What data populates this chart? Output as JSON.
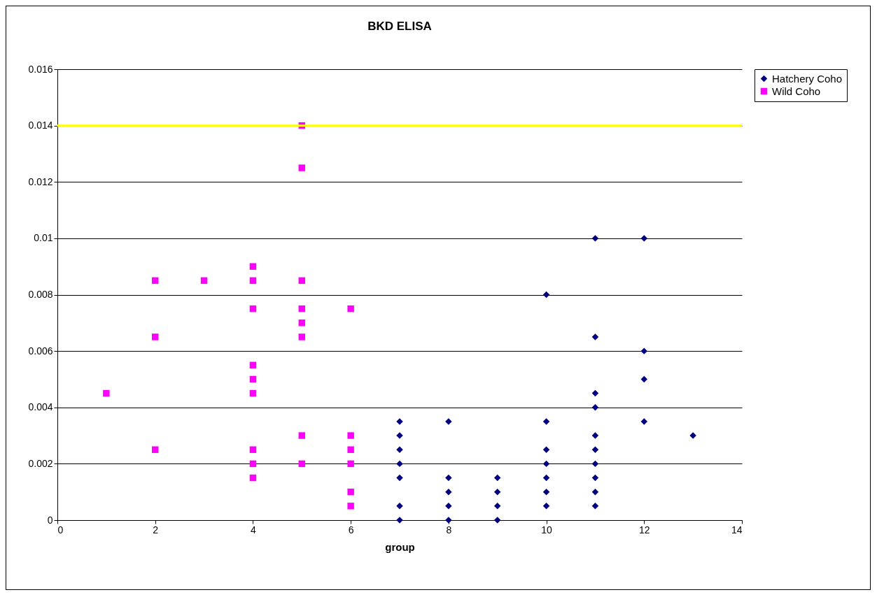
{
  "chart_data": {
    "type": "scatter",
    "title": "BKD ELISA",
    "xlabel": "group",
    "xlim": [
      0,
      14
    ],
    "xticks": [
      0,
      2,
      4,
      6,
      8,
      10,
      12,
      14
    ],
    "ylim": [
      0,
      0.016
    ],
    "yticks": [
      0,
      0.002,
      0.004,
      0.006,
      0.008,
      0.01,
      0.012,
      0.014,
      0.016
    ],
    "grid": "y",
    "legend": "right",
    "series": [
      {
        "name": "Hatchery Coho",
        "color": "#000080",
        "marker": "diamond",
        "x": [
          7,
          7,
          7,
          7,
          7,
          7,
          7,
          8,
          8,
          8,
          8,
          8,
          9,
          9,
          9,
          9,
          10,
          10,
          10,
          10,
          10,
          10,
          10,
          11,
          11,
          11,
          11,
          11,
          11,
          11,
          11,
          11,
          11,
          12,
          12,
          12,
          12,
          13
        ],
        "values": [
          0.0035,
          0.003,
          0.0025,
          0.002,
          0.0015,
          0.0005,
          0,
          0.0035,
          0.0015,
          0.001,
          0.0005,
          0,
          0.0015,
          0.001,
          0.0005,
          0,
          0.008,
          0.0035,
          0.0025,
          0.002,
          0.0015,
          0.001,
          0.0005,
          0.01,
          0.0065,
          0.0045,
          0.004,
          0.003,
          0.0025,
          0.002,
          0.0015,
          0.001,
          0.0005,
          0.01,
          0.006,
          0.005,
          0.0035,
          0.003
        ]
      },
      {
        "name": "Wild Coho",
        "color": "#ff00ff",
        "marker": "square",
        "x": [
          1,
          2,
          2,
          2,
          3,
          4,
          4,
          4,
          4,
          4,
          4,
          4,
          4,
          4,
          5,
          5,
          5,
          5,
          5,
          5,
          5,
          5,
          6,
          6,
          6,
          6,
          6,
          6
        ],
        "values": [
          0.0045,
          0.0085,
          0.0065,
          0.0025,
          0.0085,
          0.009,
          0.0085,
          0.0075,
          0.0055,
          0.005,
          0.0045,
          0.0025,
          0.002,
          0.0015,
          0.014,
          0.0125,
          0.0085,
          0.0075,
          0.007,
          0.0065,
          0.003,
          0.002,
          0.0075,
          0.003,
          0.0025,
          0.002,
          0.001,
          0.0005
        ]
      }
    ],
    "ref_lines": [
      {
        "axis": "y",
        "value": 0.014,
        "color": "#ffff00"
      }
    ]
  }
}
